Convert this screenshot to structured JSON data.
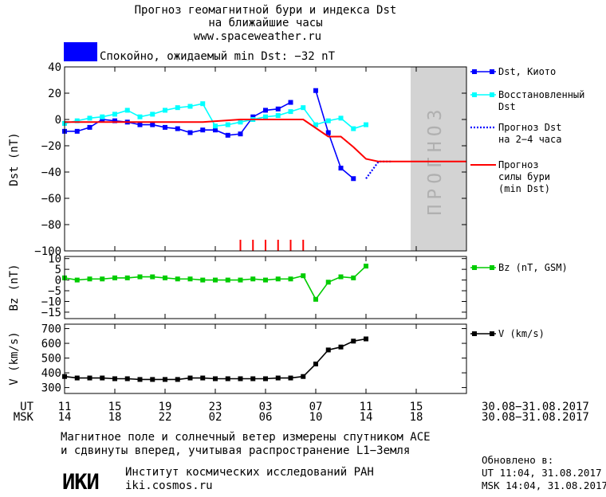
{
  "header": {
    "title_line1": "Прогноз геомагнитной бури и индекса Dst",
    "title_line2": "на ближайшие часы",
    "url": "www.spaceweather.ru",
    "status_text": "Спокойно, ожидаемый min Dst: −32 nT",
    "status_color": "#0000ff"
  },
  "chart_data": [
    {
      "type": "line",
      "ylabel": "Dst (nT)",
      "ylim": [
        -100,
        40
      ],
      "yticks": [
        "40",
        "20",
        "0",
        "−20",
        "−40",
        "−60",
        "−80",
        "−100"
      ],
      "ytick_values": [
        40,
        20,
        0,
        -20,
        -40,
        -60,
        -80,
        -100
      ],
      "xlim": [
        11,
        39
      ],
      "forecast_region": [
        39,
        43
      ],
      "forecast_label": "ПРОГНОЗ",
      "series": [
        {
          "name": "Dst, Киото",
          "color": "#0000ff",
          "x": [
            11,
            12,
            13,
            14,
            15,
            16,
            17,
            18,
            19,
            20,
            21,
            22,
            23,
            24,
            25,
            26,
            27,
            28,
            29,
            30,
            31,
            32,
            33,
            34,
            35
          ],
          "y": [
            -9,
            -9,
            -6,
            0,
            -1,
            -2,
            -4,
            -4,
            -6,
            -7,
            -10,
            -8,
            -8,
            -12,
            -11,
            2,
            7,
            8,
            13,
            null,
            22,
            -10,
            -37,
            -45,
            null
          ]
        },
        {
          "name": "Восстановленный Dst",
          "color": "#00ffff",
          "x": [
            11,
            12,
            13,
            14,
            15,
            16,
            17,
            18,
            19,
            20,
            21,
            22,
            23,
            24,
            25,
            26,
            27,
            28,
            29,
            30,
            31,
            32,
            33,
            34,
            35
          ],
          "y": [
            -3,
            -1,
            1,
            2,
            4,
            7,
            2,
            4,
            7,
            9,
            10,
            12,
            -5,
            -4,
            -2,
            0,
            2,
            3,
            6,
            9,
            -4,
            -1,
            1,
            -7,
            -4
          ]
        },
        {
          "name": "Прогноз Dst на 2–4 часа",
          "color": "#0000ff",
          "dotted": true,
          "x": [
            35,
            36,
            37
          ],
          "y": [
            -45,
            -32,
            -32
          ]
        },
        {
          "name": "Прогноз силы бури (min Dst)",
          "color": "#ff0000",
          "x": [
            11,
            15,
            18,
            21,
            22,
            25,
            29,
            30,
            32,
            33,
            34,
            35,
            36,
            39,
            43
          ],
          "y": [
            -2,
            -2,
            -2,
            -2,
            -2,
            0,
            0,
            0,
            -13,
            -13,
            -21,
            -30,
            -32,
            -32,
            -32
          ]
        }
      ],
      "red_marks_x": [
        25,
        26,
        27,
        28,
        29,
        30
      ]
    },
    {
      "type": "line",
      "ylabel": "Bz (nT)",
      "ylim": [
        -18,
        11
      ],
      "yticks": [
        "10",
        "5",
        "0",
        "−5",
        "−10",
        "−15"
      ],
      "ytick_values": [
        10,
        5,
        0,
        -5,
        -10,
        -15
      ],
      "series": [
        {
          "name": "Bz (nT, GSM)",
          "color": "#00cc00",
          "x": [
            11,
            12,
            13,
            14,
            15,
            16,
            17,
            18,
            19,
            20,
            21,
            22,
            23,
            24,
            25,
            26,
            27,
            28,
            29,
            30,
            31,
            32,
            33,
            34,
            35
          ],
          "y": [
            1,
            0,
            0.5,
            0.5,
            1,
            1,
            1.5,
            1.5,
            1,
            0.5,
            0.5,
            0,
            0,
            0,
            0,
            0.5,
            0,
            0.5,
            0.5,
            2,
            -9,
            -1,
            1.5,
            1,
            6.5
          ]
        }
      ]
    },
    {
      "type": "line",
      "ylabel": "V (km/s)",
      "ylim": [
        260,
        730
      ],
      "yticks": [
        "700",
        "600",
        "500",
        "400",
        "300"
      ],
      "ytick_values": [
        700,
        600,
        500,
        400,
        300
      ],
      "series": [
        {
          "name": "V (km/s)",
          "color": "#000000",
          "x": [
            11,
            12,
            13,
            14,
            15,
            16,
            17,
            18,
            19,
            20,
            21,
            22,
            23,
            24,
            25,
            26,
            27,
            28,
            29,
            30,
            31,
            32,
            33,
            34,
            35
          ],
          "y": [
            375,
            365,
            365,
            365,
            360,
            360,
            355,
            355,
            355,
            355,
            365,
            365,
            360,
            360,
            360,
            360,
            360,
            365,
            365,
            375,
            460,
            555,
            575,
            615,
            630
          ]
        }
      ]
    }
  ],
  "xaxis": {
    "ut_label": "UT",
    "msk_label": "MSK",
    "ut_ticks": [
      "11",
      "15",
      "19",
      "23",
      "03",
      "07",
      "11",
      "15"
    ],
    "msk_ticks": [
      "14",
      "18",
      "22",
      "02",
      "06",
      "10",
      "14",
      "18"
    ],
    "tick_positions": [
      11,
      15,
      19,
      23,
      27,
      31,
      35,
      39
    ],
    "date_range_ut": "30.08−31.08.2017",
    "date_range_msk": "30.08−31.08.2017"
  },
  "footer": {
    "note_line1": "Магнитное поле и солнечный ветер измерены спутником ACE",
    "note_line2": "и сдвинуты вперед, учитывая распространение L1−Земля",
    "logo_text": "ИКИ",
    "institute": "Институт космических исследований РАН",
    "institute_url": "iki.cosmos.ru",
    "updated_label": "Обновлено в:",
    "updated_ut": "UT  11:04, 31.08.2017",
    "updated_msk": "MSK 14:04, 31.08.2017"
  }
}
